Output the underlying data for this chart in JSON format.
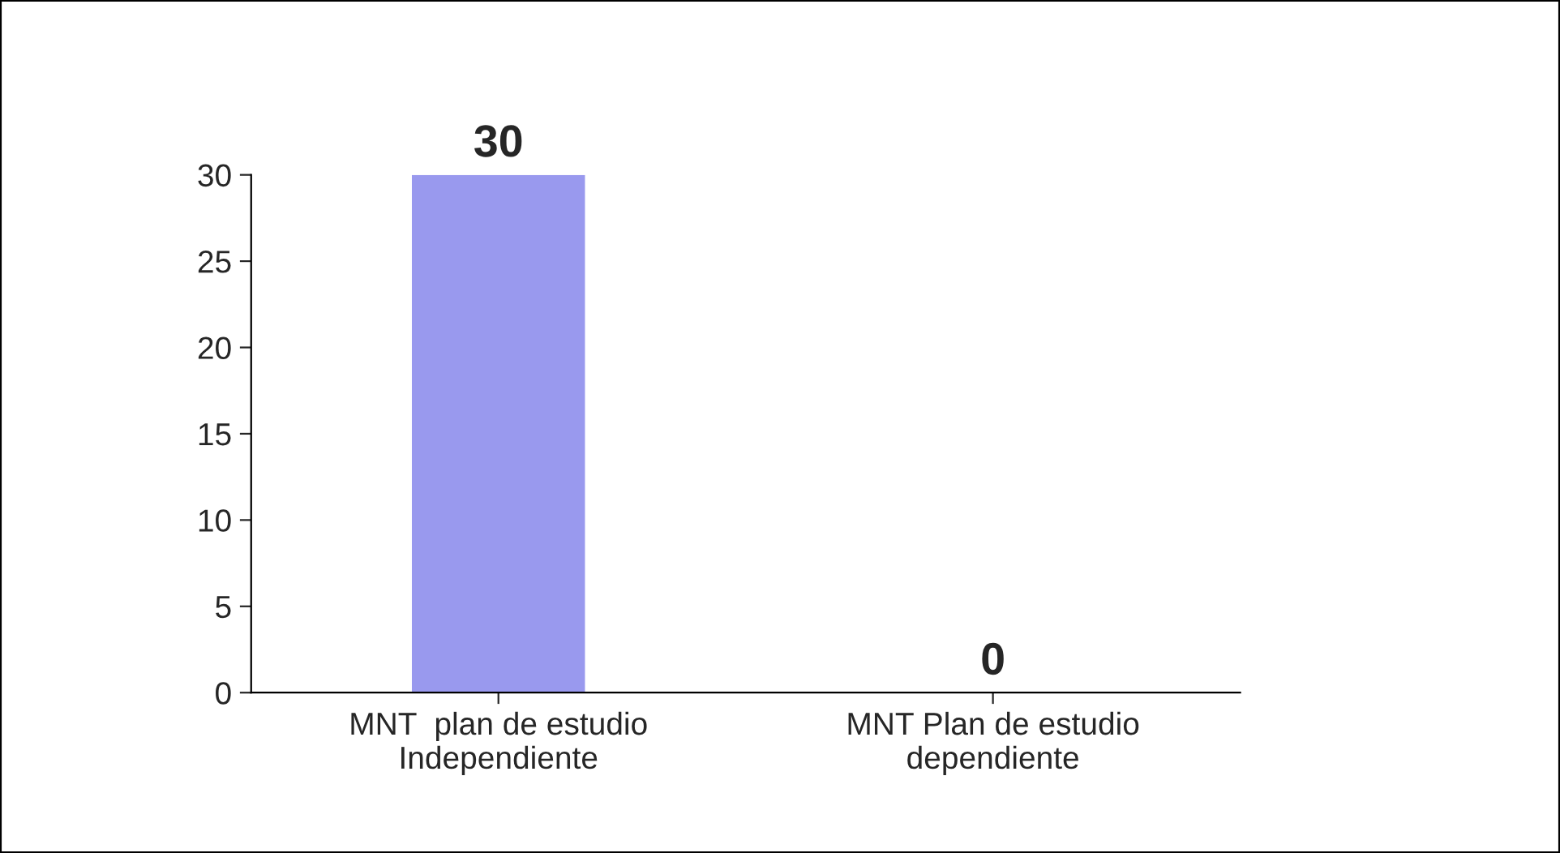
{
  "chart_data": {
    "type": "bar",
    "categories": [
      "MNT  plan de estudio\nIndependiente",
      "MNT Plan de estudio\ndependiente"
    ],
    "values": [
      30,
      0
    ],
    "color": "#9999ee",
    "ylim": [
      0,
      30
    ],
    "yticks": [
      0,
      5,
      10,
      15,
      20,
      25,
      30
    ],
    "data_labels": true,
    "grid": false,
    "legend": false
  }
}
